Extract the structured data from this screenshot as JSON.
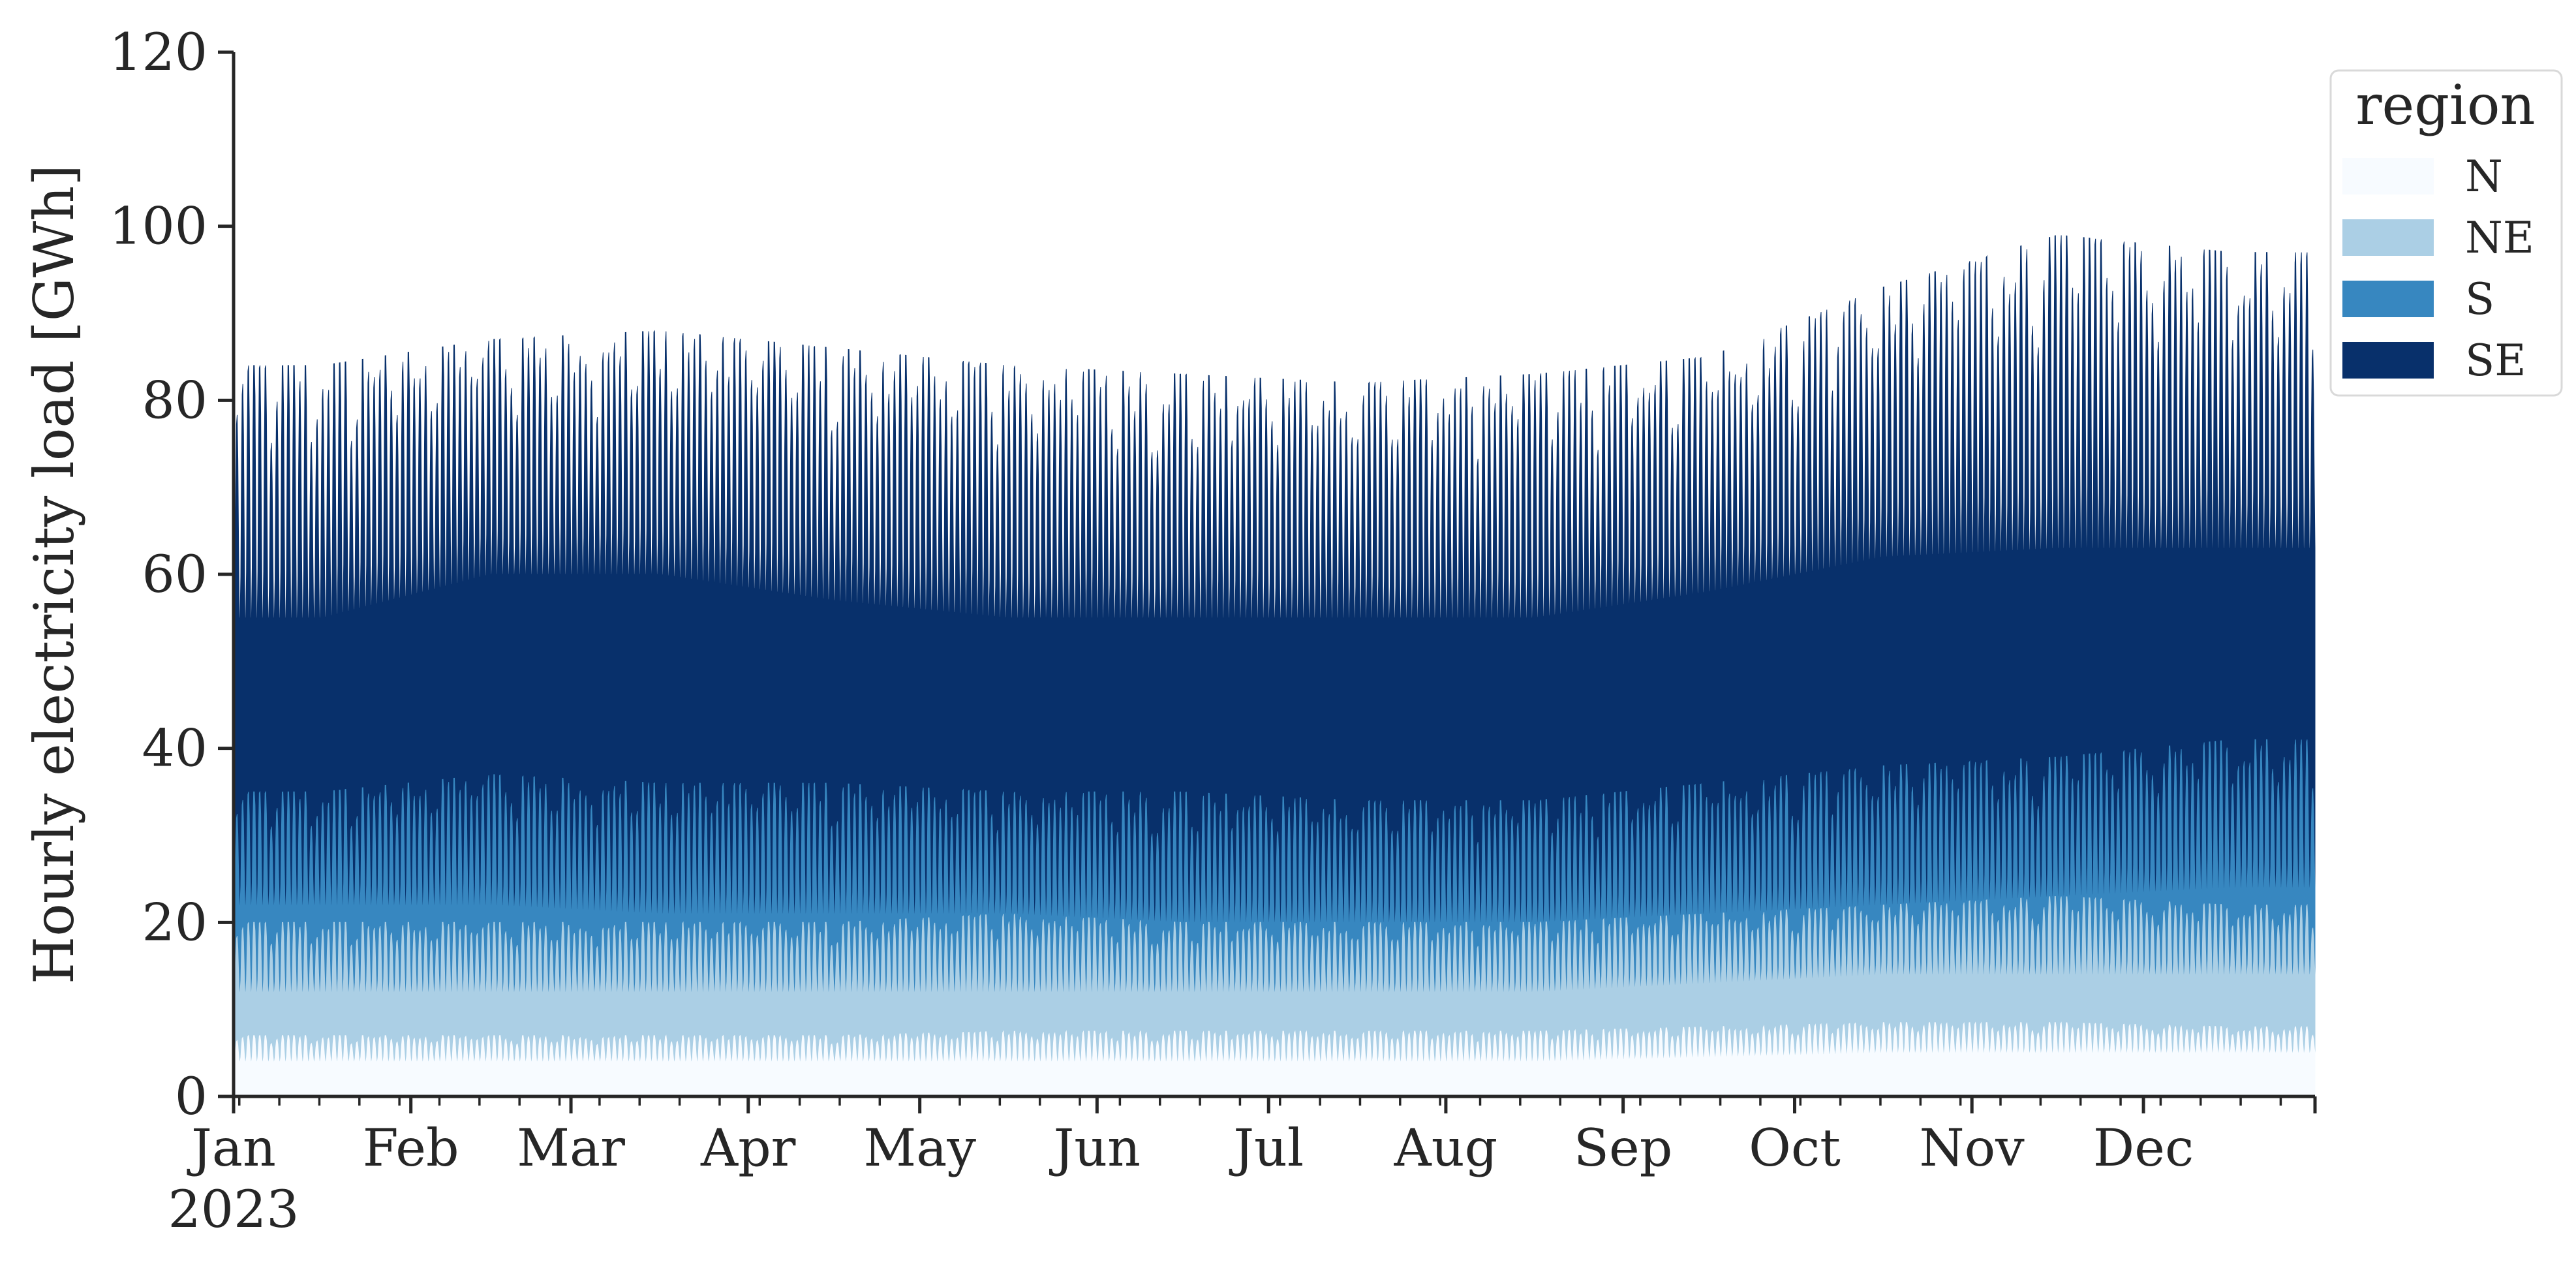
{
  "chart_data": {
    "type": "area",
    "stacked": true,
    "ylabel": "Hourly electricity load [GWh]",
    "ylim": [
      0,
      120
    ],
    "yticks": [
      0,
      20,
      40,
      60,
      80,
      100,
      120
    ],
    "xlim": [
      "2023-01-01",
      "2023-12-31"
    ],
    "xticks": [
      {
        "date": "2023-01-01",
        "label": "Jan",
        "sublabel": "2023"
      },
      {
        "date": "2023-02-01",
        "label": "Feb"
      },
      {
        "date": "2023-03-01",
        "label": "Mar"
      },
      {
        "date": "2023-04-01",
        "label": "Apr"
      },
      {
        "date": "2023-05-01",
        "label": "May"
      },
      {
        "date": "2023-06-01",
        "label": "Jun"
      },
      {
        "date": "2023-07-01",
        "label": "Jul"
      },
      {
        "date": "2023-08-01",
        "label": "Aug"
      },
      {
        "date": "2023-09-01",
        "label": "Sep"
      },
      {
        "date": "2023-10-01",
        "label": "Oct"
      },
      {
        "date": "2023-11-01",
        "label": "Nov"
      },
      {
        "date": "2023-12-01",
        "label": "Dec"
      }
    ],
    "grid": false,
    "legend": {
      "title": "region",
      "placement": "top-right, outside plot"
    },
    "x_resolution": "hourly",
    "series": [
      {
        "name": "N",
        "color": "#f7fbff",
        "monthly_cumulative_peak": [
          7,
          7,
          7,
          7,
          7.5,
          7.5,
          7.5,
          7.5,
          8,
          8.5,
          8.5,
          8
        ],
        "monthly_cumulative_trough": [
          4,
          4,
          4,
          4,
          4,
          4,
          4,
          4,
          4.5,
          5,
          5,
          5
        ]
      },
      {
        "name": "NE",
        "color": "#abcfe5",
        "monthly_cumulative_peak": [
          20,
          20,
          20,
          20,
          21,
          20,
          20,
          20,
          21,
          22,
          23,
          22
        ],
        "monthly_cumulative_trough": [
          12,
          12,
          12,
          12,
          12,
          12,
          12,
          12,
          13,
          14,
          14,
          14
        ]
      },
      {
        "name": "S",
        "color": "#3787c0",
        "monthly_cumulative_peak": [
          35,
          37,
          36,
          36,
          35,
          35,
          34,
          34,
          36,
          38,
          39,
          41
        ],
        "monthly_cumulative_trough": [
          22,
          22,
          21,
          21,
          21,
          20,
          20,
          20,
          21,
          22,
          23,
          24
        ]
      },
      {
        "name": "SE",
        "color": "#08306b",
        "monthly_cumulative_peak": [
          84,
          87,
          88,
          86,
          84,
          83,
          82,
          83,
          85,
          93,
          99,
          97
        ],
        "monthly_cumulative_trough": [
          55,
          60,
          60,
          57,
          55,
          55,
          55,
          55,
          58,
          62,
          63,
          63
        ]
      }
    ]
  }
}
